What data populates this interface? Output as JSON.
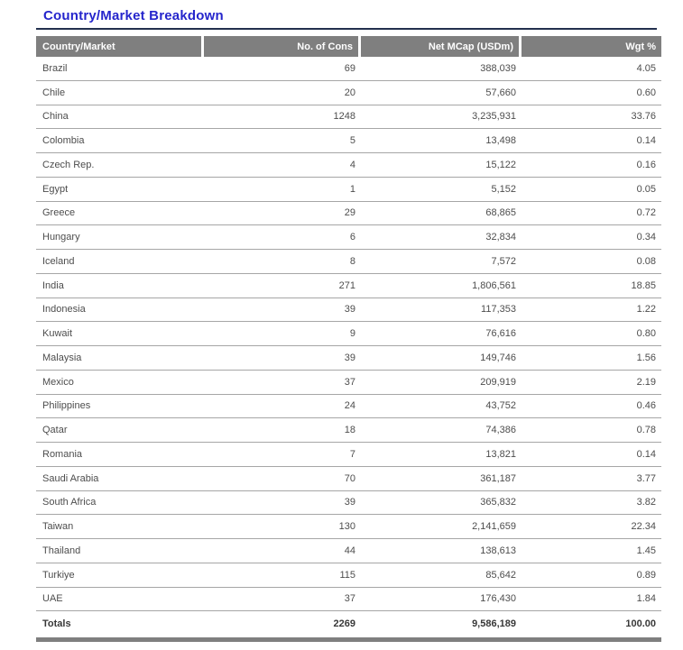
{
  "page": {
    "title": "Country/Market Breakdown",
    "colors": {
      "title_blue": "#2525CC",
      "underline_navy": "#22304E",
      "header_gray": "#7F7F7F",
      "header_text": "#FFFFFF",
      "row_text": "#4D4D4D",
      "divider_gray": "#A6A6A6",
      "totals_text": "#383838",
      "bar_gray": "#7F7F7F"
    }
  },
  "table": {
    "columns": [
      "Country/Market",
      "No. of Cons",
      "Net MCap (USDm)",
      "Wgt %"
    ],
    "rows": [
      {
        "country": "Brazil",
        "cons": "69",
        "mcap": "388,039",
        "wgt": "4.05"
      },
      {
        "country": "Chile",
        "cons": "20",
        "mcap": "57,660",
        "wgt": "0.60"
      },
      {
        "country": "China",
        "cons": "1248",
        "mcap": "3,235,931",
        "wgt": "33.76"
      },
      {
        "country": "Colombia",
        "cons": "5",
        "mcap": "13,498",
        "wgt": "0.14"
      },
      {
        "country": "Czech Rep.",
        "cons": "4",
        "mcap": "15,122",
        "wgt": "0.16"
      },
      {
        "country": "Egypt",
        "cons": "1",
        "mcap": "5,152",
        "wgt": "0.05"
      },
      {
        "country": "Greece",
        "cons": "29",
        "mcap": "68,865",
        "wgt": "0.72"
      },
      {
        "country": "Hungary",
        "cons": "6",
        "mcap": "32,834",
        "wgt": "0.34"
      },
      {
        "country": "Iceland",
        "cons": "8",
        "mcap": "7,572",
        "wgt": "0.08"
      },
      {
        "country": "India",
        "cons": "271",
        "mcap": "1,806,561",
        "wgt": "18.85"
      },
      {
        "country": "Indonesia",
        "cons": "39",
        "mcap": "117,353",
        "wgt": "1.22"
      },
      {
        "country": "Kuwait",
        "cons": "9",
        "mcap": "76,616",
        "wgt": "0.80"
      },
      {
        "country": "Malaysia",
        "cons": "39",
        "mcap": "149,746",
        "wgt": "1.56"
      },
      {
        "country": "Mexico",
        "cons": "37",
        "mcap": "209,919",
        "wgt": "2.19"
      },
      {
        "country": "Philippines",
        "cons": "24",
        "mcap": "43,752",
        "wgt": "0.46"
      },
      {
        "country": "Qatar",
        "cons": "18",
        "mcap": "74,386",
        "wgt": "0.78"
      },
      {
        "country": "Romania",
        "cons": "7",
        "mcap": "13,821",
        "wgt": "0.14"
      },
      {
        "country": "Saudi Arabia",
        "cons": "70",
        "mcap": "361,187",
        "wgt": "3.77"
      },
      {
        "country": "South Africa",
        "cons": "39",
        "mcap": "365,832",
        "wgt": "3.82"
      },
      {
        "country": "Taiwan",
        "cons": "130",
        "mcap": "2,141,659",
        "wgt": "22.34"
      },
      {
        "country": "Thailand",
        "cons": "44",
        "mcap": "138,613",
        "wgt": "1.45"
      },
      {
        "country": "Turkiye",
        "cons": "115",
        "mcap": "85,642",
        "wgt": "0.89"
      },
      {
        "country": "UAE",
        "cons": "37",
        "mcap": "176,430",
        "wgt": "1.84"
      }
    ],
    "totals": {
      "country": "Totals",
      "cons": "2269",
      "mcap": "9,586,189",
      "wgt": "100.00"
    }
  }
}
